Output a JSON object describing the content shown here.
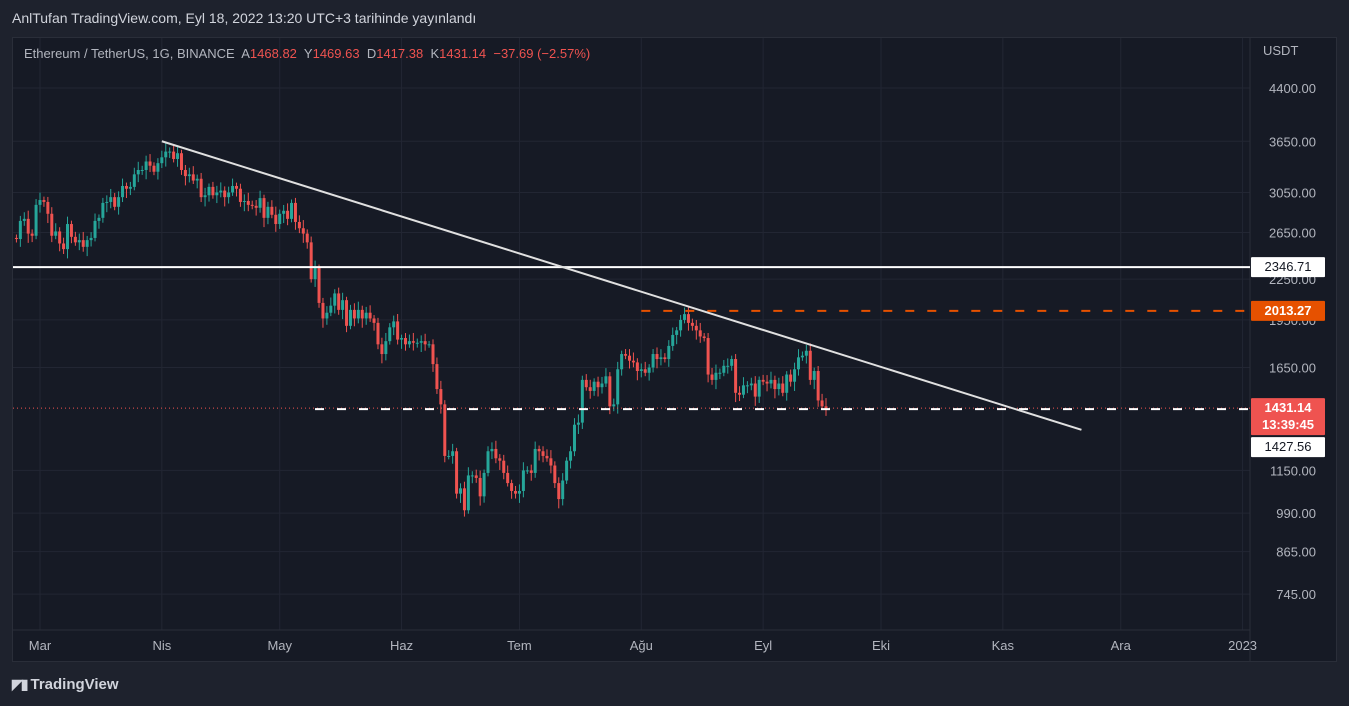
{
  "header": {
    "title": "AnlTufan TradingView.com, Eyl 18, 2022 13:20 UTC+3 tarihinde yayınlandı"
  },
  "legend": {
    "symbol": "Ethereum / TetherUS, 1G, BINANCE",
    "o_label": "A",
    "o": "1468.82",
    "h_label": "Y",
    "h": "1469.63",
    "l_label": "D",
    "l": "1417.38",
    "c_label": "K",
    "c": "1431.14",
    "change": "−37.69 (−2.57%)"
  },
  "footer": {
    "brand": "TradingView"
  },
  "colors": {
    "up": "#26a69a",
    "down": "#ef5350",
    "orange": "#e65100",
    "bg": "#161a25"
  },
  "chart_data": {
    "type": "candlestick",
    "currency": "USDT",
    "scale": "log",
    "ylim": [
      690,
      4900
    ],
    "y_ticks": [
      "4400.00",
      "3650.00",
      "3050.00",
      "2650.00",
      "2250.00",
      "1950.00",
      "1650.00",
      "1150.00",
      "990.00",
      "865.00",
      "745.00"
    ],
    "x_ticks": [
      {
        "label": "Mar",
        "day": 0
      },
      {
        "label": "Nis",
        "day": 31
      },
      {
        "label": "May",
        "day": 61
      },
      {
        "label": "Haz",
        "day": 92
      },
      {
        "label": "Tem",
        "day": 122
      },
      {
        "label": "Ağu",
        "day": 153
      },
      {
        "label": "Eyl",
        "day": 184
      },
      {
        "label": "Eki",
        "day": 214
      },
      {
        "label": "Kas",
        "day": 245
      },
      {
        "label": "Ara",
        "day": 275
      },
      {
        "label": "2023",
        "day": 306
      }
    ],
    "start_day": -6,
    "start_open": 2600,
    "closes": [
      2590,
      2760,
      2780,
      2640,
      2620,
      2920,
      2970,
      2950,
      2830,
      2620,
      2660,
      2550,
      2500,
      2730,
      2610,
      2560,
      2580,
      2520,
      2580,
      2600,
      2760,
      2790,
      2940,
      2950,
      3000,
      2900,
      3000,
      3120,
      3090,
      3110,
      3250,
      3300,
      3300,
      3400,
      3350,
      3280,
      3380,
      3450,
      3520,
      3520,
      3430,
      3500,
      3300,
      3230,
      3250,
      3180,
      3200,
      3000,
      3020,
      3110,
      3020,
      3050,
      3070,
      3000,
      3050,
      3120,
      3090,
      2950,
      2960,
      2920,
      2910,
      2890,
      2990,
      2790,
      2900,
      2820,
      2730,
      2830,
      2860,
      2780,
      2940,
      2750,
      2690,
      2640,
      2560,
      2250,
      2340,
      2070,
      1960,
      2000,
      2050,
      2140,
      2020,
      2090,
      1910,
      2020,
      1960,
      2020,
      1960,
      2000,
      1960,
      1930,
      1790,
      1730,
      1810,
      1900,
      1940,
      1820,
      1830,
      1790,
      1810,
      1800,
      1800,
      1810,
      1790,
      1790,
      1670,
      1530,
      1450,
      1210,
      1210,
      1230,
      1060,
      1080,
      1000,
      1130,
      1130,
      1120,
      1050,
      1140,
      1230,
      1240,
      1200,
      1190,
      1140,
      1100,
      1070,
      1060,
      1070,
      1150,
      1150,
      1140,
      1240,
      1230,
      1210,
      1200,
      1170,
      1100,
      1040,
      1110,
      1190,
      1230,
      1350,
      1360,
      1580,
      1540,
      1520,
      1570,
      1540,
      1560,
      1600,
      1440,
      1450,
      1640,
      1730,
      1720,
      1690,
      1680,
      1630,
      1640,
      1620,
      1650,
      1730,
      1700,
      1710,
      1700,
      1780,
      1850,
      1880,
      1950,
      1990,
      1930,
      1910,
      1880,
      1840,
      1830,
      1610,
      1580,
      1620,
      1620,
      1660,
      1660,
      1700,
      1510,
      1500,
      1550,
      1550,
      1560,
      1490,
      1580,
      1570,
      1560,
      1580,
      1530,
      1560,
      1510,
      1610,
      1570,
      1640,
      1710,
      1720,
      1750,
      1580,
      1630,
      1470,
      1440,
      1431
    ],
    "levels": [
      {
        "name": "support",
        "price": 2346.71,
        "label": "2346.71",
        "style": "solid-white"
      },
      {
        "name": "resistance",
        "price": 2013.27,
        "label": "2013.27",
        "style": "dashed-orange",
        "from_day": 153
      },
      {
        "name": "low-marker",
        "price": 1427.56,
        "label": "1427.56",
        "style": "label-only"
      }
    ],
    "last_price": {
      "label": "1431.14",
      "countdown": "13:39:45",
      "price": 1431.14
    },
    "trendline": {
      "from": {
        "day": 31,
        "price": 3650
      },
      "to": {
        "day": 265,
        "price": 1326
      }
    }
  }
}
